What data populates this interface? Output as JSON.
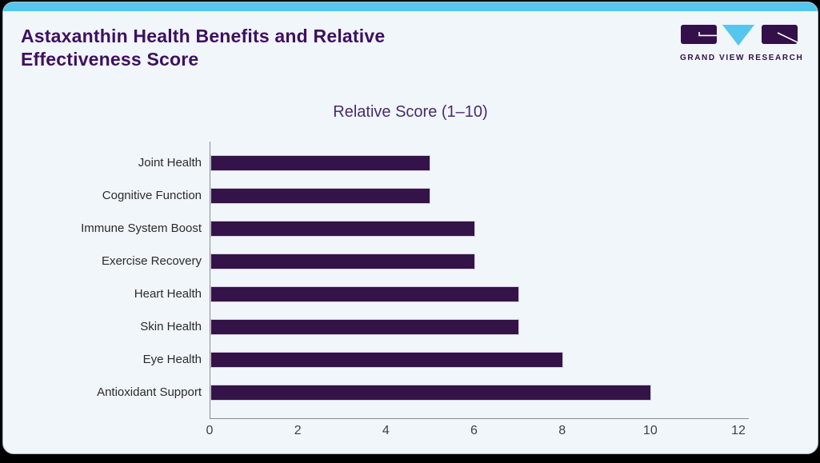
{
  "page": {
    "title_line1": "Astaxanthin Health Benefits and Relative",
    "title_line2": "Effectiveness Score"
  },
  "logo": {
    "name": "grand-view-research-logo",
    "text": "GRAND VIEW RESEARCH"
  },
  "colors": {
    "accent_topbar": "#56c6ee",
    "card_background": "#f0f6fa",
    "title_purple": "#3e1060",
    "subtitle_purple": "#4a2a70",
    "bar_purple": "#341348",
    "logo_purple": "#33104a",
    "logo_cyan": "#56c6ee",
    "axis_gray": "#878c93"
  },
  "chart_data": {
    "type": "bar",
    "orientation": "horizontal",
    "title": "Astaxanthin Health Benefits and Relative Effectiveness Score",
    "axis_title": "Relative Score (1–10)",
    "categories": [
      "Joint Health",
      "Cognitive Function",
      "Immune System Boost",
      "Exercise Recovery",
      "Heart Health",
      "Skin Health",
      "Eye Health",
      "Antioxidant Support"
    ],
    "values": [
      5,
      5,
      6,
      6,
      7,
      7,
      8,
      10
    ],
    "xlim": [
      0,
      12
    ],
    "xticks": [
      0,
      2,
      4,
      6,
      8,
      10,
      12
    ],
    "bar_color": "#341348",
    "grid": false,
    "legend": false
  }
}
